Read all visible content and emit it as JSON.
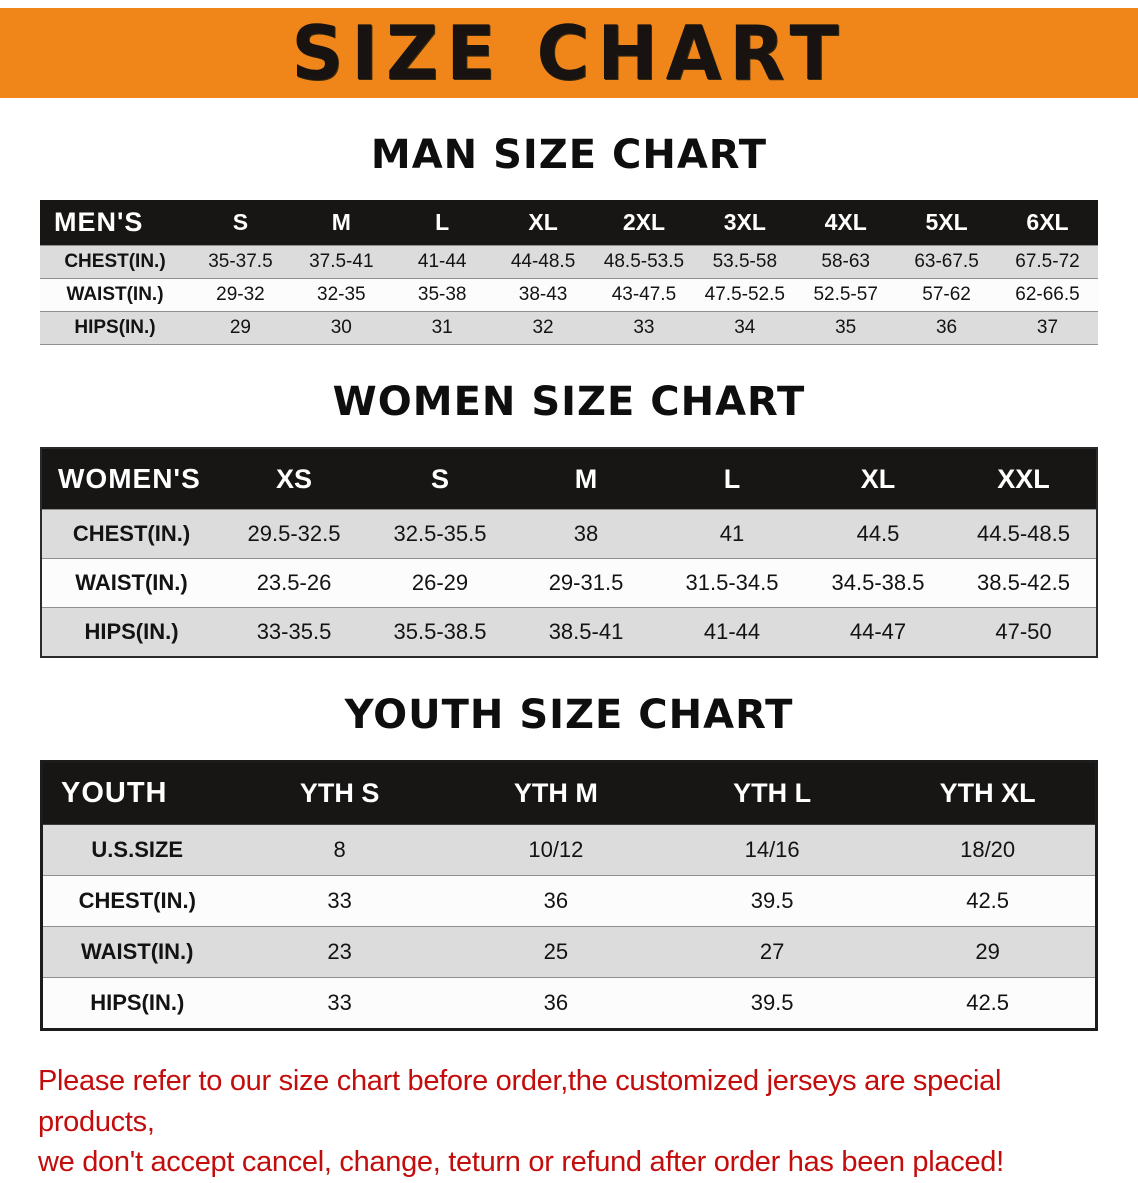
{
  "banner": {
    "title": "SIZE CHART",
    "background_color": "#f0861a",
    "text_color": "#181311"
  },
  "tables": [
    {
      "id": "men",
      "title": "MAN SIZE CHART",
      "header": [
        "MEN'S",
        "S",
        "M",
        "L",
        "XL",
        "2XL",
        "3XL",
        "4XL",
        "5XL",
        "6XL"
      ],
      "rows": [
        [
          "CHEST(IN.)",
          "35-37.5",
          "37.5-41",
          "41-44",
          "44-48.5",
          "48.5-53.5",
          "53.5-58",
          "58-63",
          "63-67.5",
          "67.5-72"
        ],
        [
          "WAIST(IN.)",
          "29-32",
          "32-35",
          "35-38",
          "38-43",
          "43-47.5",
          "47.5-52.5",
          "52.5-57",
          "57-62",
          "62-66.5"
        ],
        [
          "HIPS(IN.)",
          "29",
          "30",
          "31",
          "32",
          "33",
          "34",
          "35",
          "36",
          "37"
        ]
      ]
    },
    {
      "id": "women",
      "title": "WOMEN SIZE CHART",
      "header": [
        "WOMEN'S",
        "XS",
        "S",
        "M",
        "L",
        "XL",
        "XXL"
      ],
      "rows": [
        [
          "CHEST(IN.)",
          "29.5-32.5",
          "32.5-35.5",
          "38",
          "41",
          "44.5",
          "44.5-48.5"
        ],
        [
          "WAIST(IN.)",
          "23.5-26",
          "26-29",
          "29-31.5",
          "31.5-34.5",
          "34.5-38.5",
          "38.5-42.5"
        ],
        [
          "HIPS(IN.)",
          "33-35.5",
          "35.5-38.5",
          "38.5-41",
          "41-44",
          "44-47",
          "47-50"
        ]
      ]
    },
    {
      "id": "youth",
      "title": "YOUTH SIZE CHART",
      "header": [
        "YOUTH",
        "YTH S",
        "YTH M",
        "YTH L",
        "YTH XL"
      ],
      "rows": [
        [
          "U.S.SIZE",
          "8",
          "10/12",
          "14/16",
          "18/20"
        ],
        [
          "CHEST(IN.)",
          "33",
          "36",
          "39.5",
          "42.5"
        ],
        [
          "WAIST(IN.)",
          "23",
          "25",
          "27",
          "29"
        ],
        [
          "HIPS(IN.)",
          "33",
          "36",
          "39.5",
          "42.5"
        ]
      ]
    }
  ],
  "footer": {
    "text_color": "#c30d0d",
    "lines": [
      "Please refer to our size chart before order,the customized jerseys are special products,",
      "we don't accept cancel, change, teturn or refund after order has been placed!"
    ]
  }
}
